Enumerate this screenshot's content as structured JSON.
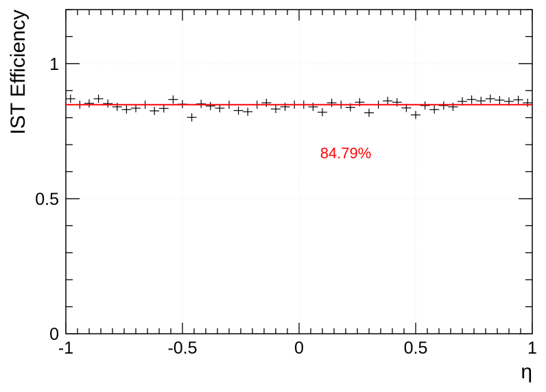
{
  "chart_data": {
    "type": "scatter",
    "xlabel": "η",
    "ylabel": "IST Efficiency",
    "xlim": [
      -1,
      1
    ],
    "ylim": [
      0,
      1.2
    ],
    "x_major_ticks": [
      -1,
      -0.5,
      0,
      0.5,
      1
    ],
    "x_tick_labels": [
      "-1",
      "-0.5",
      "0",
      "0.5",
      "1"
    ],
    "y_major_ticks": [
      0,
      0.5,
      1
    ],
    "y_tick_labels": [
      "0",
      "0.5",
      "1"
    ],
    "grid": true,
    "series": [
      {
        "marker": "cross",
        "color": "#000000",
        "x": [
          -0.98,
          -0.94,
          -0.9,
          -0.86,
          -0.82,
          -0.78,
          -0.74,
          -0.7,
          -0.66,
          -0.62,
          -0.58,
          -0.54,
          -0.5,
          -0.46,
          -0.42,
          -0.38,
          -0.34,
          -0.3,
          -0.26,
          -0.22,
          -0.18,
          -0.14,
          -0.1,
          -0.06,
          -0.02,
          0.02,
          0.06,
          0.1,
          0.14,
          0.18,
          0.22,
          0.26,
          0.3,
          0.34,
          0.38,
          0.42,
          0.46,
          0.5,
          0.54,
          0.58,
          0.62,
          0.66,
          0.7,
          0.74,
          0.78,
          0.82,
          0.86,
          0.9,
          0.94,
          0.98
        ],
        "y": [
          0.87,
          0.848,
          0.853,
          0.87,
          0.852,
          0.84,
          0.83,
          0.835,
          0.848,
          0.825,
          0.834,
          0.867,
          0.85,
          0.801,
          0.851,
          0.843,
          0.835,
          0.848,
          0.826,
          0.822,
          0.848,
          0.855,
          0.832,
          0.84,
          0.848,
          0.848,
          0.84,
          0.82,
          0.855,
          0.848,
          0.838,
          0.857,
          0.818,
          0.848,
          0.862,
          0.857,
          0.836,
          0.81,
          0.845,
          0.83,
          0.845,
          0.84,
          0.86,
          0.867,
          0.862,
          0.87,
          0.865,
          0.86,
          0.866,
          0.855
        ]
      }
    ],
    "fit_line": {
      "y": 0.8479,
      "color": "#ff0000"
    },
    "annotation": {
      "text": "84.79%",
      "x": 0.2,
      "y": 0.67,
      "color": "#ff0000"
    }
  }
}
